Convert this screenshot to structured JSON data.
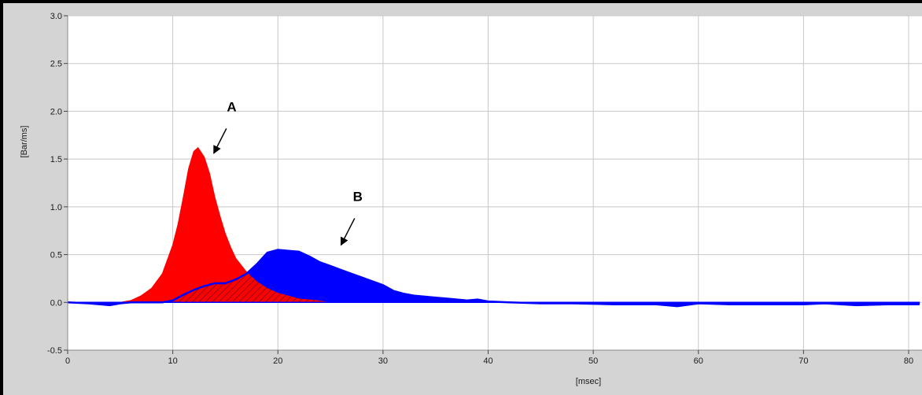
{
  "chart_data": {
    "type": "area",
    "xlabel": "[msec]",
    "ylabel": "[Bar/ms]",
    "xlim": [
      0,
      81
    ],
    "ylim": [
      -0.5,
      3.0
    ],
    "x_ticks": [
      0,
      10,
      20,
      30,
      40,
      50,
      60,
      70,
      80
    ],
    "y_ticks": [
      3.0,
      2.5,
      2.0,
      1.5,
      1.0,
      0.5,
      0.0,
      -0.5
    ],
    "y_tick_labels": [
      "3.0",
      "2.5",
      "2.0",
      "1.5",
      "1.0",
      "0.5",
      "0.0",
      "-0.5"
    ],
    "grid": true,
    "series": [
      {
        "name": "A",
        "color": "#ff0000",
        "x": [
          0,
          5,
          6,
          7,
          8,
          9,
          10,
          10.5,
          11,
          11.5,
          12,
          12.4,
          13,
          13.5,
          14,
          14.5,
          15,
          15.5,
          16,
          17,
          18,
          19,
          20,
          21,
          22,
          24,
          25,
          81
        ],
        "y": [
          0,
          0,
          0.02,
          0.07,
          0.15,
          0.3,
          0.6,
          0.82,
          1.1,
          1.4,
          1.58,
          1.62,
          1.52,
          1.35,
          1.1,
          0.9,
          0.72,
          0.58,
          0.46,
          0.32,
          0.22,
          0.15,
          0.1,
          0.07,
          0.04,
          0.02,
          0,
          0
        ]
      },
      {
        "name": "B",
        "color": "#0000ff",
        "x": [
          0,
          2,
          4,
          5,
          6,
          7,
          9,
          10,
          11,
          12,
          13,
          14,
          15,
          16,
          17,
          18,
          19,
          20,
          21,
          22,
          23,
          24,
          25,
          26,
          27,
          28,
          29,
          30,
          31,
          32,
          33,
          34,
          35,
          36,
          37,
          38,
          39,
          40,
          42,
          45,
          48,
          52,
          56,
          58,
          60,
          63,
          66,
          70,
          72,
          75,
          78,
          81
        ],
        "y": [
          0,
          -0.01,
          -0.03,
          -0.01,
          0,
          0,
          0,
          0.02,
          0.08,
          0.13,
          0.17,
          0.2,
          0.2,
          0.24,
          0.3,
          0.4,
          0.52,
          0.55,
          0.54,
          0.53,
          0.48,
          0.42,
          0.38,
          0.34,
          0.3,
          0.26,
          0.22,
          0.18,
          0.12,
          0.09,
          0.07,
          0.06,
          0.05,
          0.04,
          0.03,
          0.02,
          0.03,
          0.01,
          0,
          -0.01,
          -0.01,
          -0.02,
          -0.02,
          -0.04,
          -0.01,
          -0.02,
          -0.02,
          -0.02,
          -0.01,
          -0.03,
          -0.02,
          -0.02
        ]
      }
    ],
    "annotations": [
      {
        "text": "A",
        "x": 15.6,
        "y": 2.0,
        "arrow_from": [
          15.1,
          1.82
        ],
        "arrow_to": [
          13.9,
          1.56
        ]
      },
      {
        "text": "B",
        "x": 27.6,
        "y": 1.06,
        "arrow_from": [
          27.3,
          0.88
        ],
        "arrow_to": [
          26.0,
          0.6
        ]
      }
    ]
  }
}
